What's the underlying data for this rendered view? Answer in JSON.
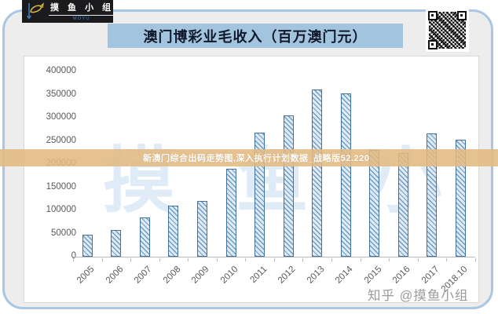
{
  "logo": {
    "brand_cn": "摸 鱼 小 组",
    "brand_en": "MOYU"
  },
  "title_banner": {
    "text": "澳门博彩业毛收入（百万澳门元）"
  },
  "watermarks": {
    "band_text": "新澳门综合出码走势图,深入执行计划数据_战略版52.220",
    "big_text": "摸 鱼 小 组",
    "credit": "知乎 @摸鱼小组"
  },
  "chart_data": {
    "type": "bar",
    "title": "澳门博彩业毛收入（百万澳门元）",
    "xlabel": "",
    "ylabel": "",
    "categories": [
      "2005",
      "2006",
      "2007",
      "2008",
      "2009",
      "2010",
      "2011",
      "2012",
      "2013",
      "2014",
      "2015",
      "2016",
      "2017",
      "2018.10"
    ],
    "values": [
      47000,
      57000,
      84000,
      110000,
      120000,
      189000,
      268000,
      305000,
      361000,
      352000,
      231000,
      224000,
      266000,
      252000
    ],
    "ylim": [
      0,
      400000
    ],
    "ytick_interval": 50000,
    "yticks": [
      "400000",
      "350000",
      "300000",
      "250000",
      "200000",
      "150000",
      "100000",
      "50000",
      "0"
    ],
    "grid": false,
    "legend": null,
    "bar_fill": "#dfeaf4",
    "bar_hatch": "#6d9dc4",
    "bar_border": "#41719c"
  },
  "colors": {
    "card_border": "#a9c6e2",
    "card_bg": "#ededee",
    "banner_bg": "#a3c4de",
    "banner_text": "#10182b",
    "band_bg": "#e3ba81",
    "band_text": "#ffffff",
    "axis_text": "#595959",
    "credit_text": "#9b9b9b"
  }
}
